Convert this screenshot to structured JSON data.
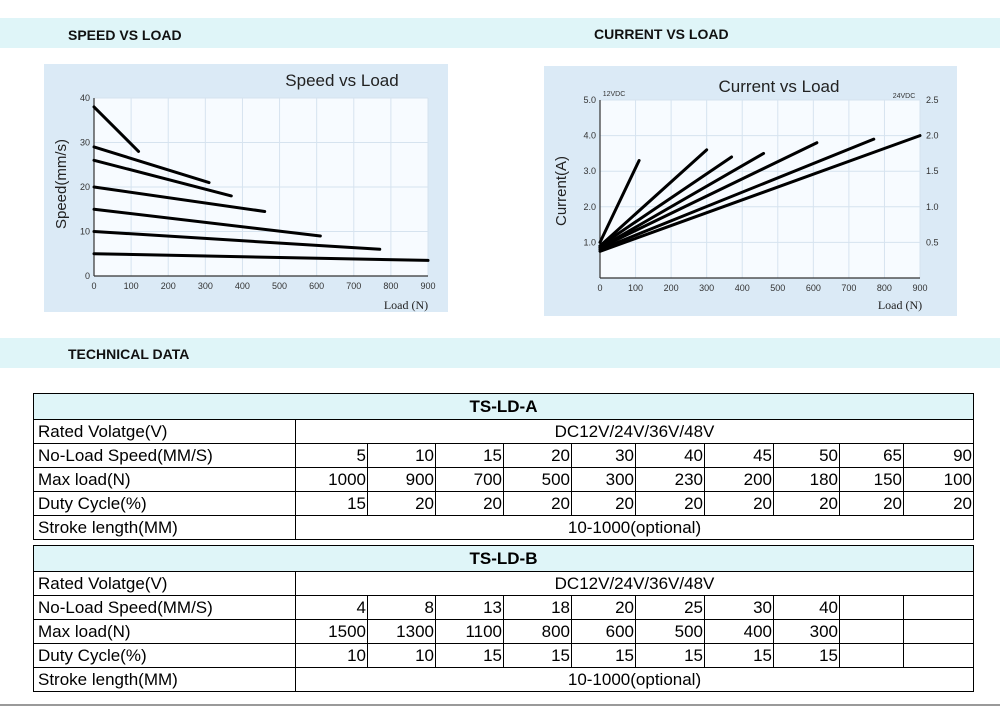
{
  "sections": {
    "speed_title": "SPEED VS LOAD",
    "current_title": "CURRENT VS LOAD",
    "tech_title": "TECHNICAL DATA"
  },
  "chart_data": [
    {
      "type": "line",
      "title": "Speed vs Load",
      "xlabel": "Load (N)",
      "ylabel": "Speed(mm/s)",
      "xlim": [
        0,
        900
      ],
      "ylim": [
        0,
        40
      ],
      "xticks": [
        "0",
        "100",
        "200",
        "300",
        "400",
        "500",
        "600",
        "700",
        "800",
        "900"
      ],
      "yticks": [
        "0",
        "10",
        "20",
        "30",
        "40"
      ],
      "grid": true,
      "series": [
        {
          "x": [
            0,
            120
          ],
          "y": [
            38,
            28
          ]
        },
        {
          "x": [
            0,
            310
          ],
          "y": [
            29,
            21
          ]
        },
        {
          "x": [
            0,
            370
          ],
          "y": [
            26,
            18
          ]
        },
        {
          "x": [
            0,
            460
          ],
          "y": [
            20,
            14.5
          ]
        },
        {
          "x": [
            0,
            610
          ],
          "y": [
            15,
            9
          ]
        },
        {
          "x": [
            0,
            770
          ],
          "y": [
            10,
            6
          ]
        },
        {
          "x": [
            0,
            900
          ],
          "y": [
            5,
            3.5
          ]
        }
      ]
    },
    {
      "type": "line",
      "title": "Current vs Load",
      "xlabel": "Load (N)",
      "ylabel": "Current(A)",
      "left_axis_label": "12VDC",
      "right_axis_label": "24VDC",
      "xlim": [
        0,
        900
      ],
      "ylim": [
        0,
        5
      ],
      "y2lim": [
        0,
        2.5
      ],
      "xticks": [
        "0",
        "100",
        "200",
        "300",
        "400",
        "500",
        "600",
        "700",
        "800",
        "900"
      ],
      "yticks": [
        "1.0",
        "2.0",
        "3.0",
        "4.0",
        "5.0"
      ],
      "y2ticks": [
        "0.5",
        "1.0",
        "1.5",
        "2.0",
        "2.5"
      ],
      "grid": true,
      "series": [
        {
          "x": [
            0,
            110
          ],
          "y": [
            1.0,
            3.3
          ]
        },
        {
          "x": [
            0,
            300
          ],
          "y": [
            0.9,
            3.6
          ]
        },
        {
          "x": [
            0,
            370
          ],
          "y": [
            0.9,
            3.4
          ]
        },
        {
          "x": [
            0,
            460
          ],
          "y": [
            0.85,
            3.5
          ]
        },
        {
          "x": [
            0,
            610
          ],
          "y": [
            0.85,
            3.8
          ]
        },
        {
          "x": [
            0,
            770
          ],
          "y": [
            0.8,
            3.9
          ]
        },
        {
          "x": [
            0,
            900
          ],
          "y": [
            0.75,
            4.0
          ]
        }
      ]
    }
  ],
  "tables": [
    {
      "title": "TS-LD-A",
      "voltage_label": "Rated Volatge(V)",
      "voltage_value": "DC12V/24V/36V/48V",
      "speed_label": "No-Load Speed(MM/S)",
      "speeds": [
        "5",
        "10",
        "15",
        "20",
        "30",
        "40",
        "45",
        "50",
        "65",
        "90"
      ],
      "load_label": "Max load(N)",
      "loads": [
        "1000",
        "900",
        "700",
        "500",
        "300",
        "230",
        "200",
        "180",
        "150",
        "100"
      ],
      "duty_label": "Duty Cycle(%)",
      "duties": [
        "15",
        "20",
        "20",
        "20",
        "20",
        "20",
        "20",
        "20",
        "20",
        "20"
      ],
      "stroke_label": "Stroke length(MM)",
      "stroke_value": "10-1000(optional)"
    },
    {
      "title": "TS-LD-B",
      "voltage_label": "Rated Volatge(V)",
      "voltage_value": "DC12V/24V/36V/48V",
      "speed_label": "No-Load Speed(MM/S)",
      "speeds": [
        "4",
        "8",
        "13",
        "18",
        "20",
        "25",
        "30",
        "40",
        "",
        ""
      ],
      "load_label": "Max load(N)",
      "loads": [
        "1500",
        "1300",
        "1100",
        "800",
        "600",
        "500",
        "400",
        "300",
        "",
        ""
      ],
      "duty_label": "Duty Cycle(%)",
      "duties": [
        "10",
        "10",
        "15",
        "15",
        "15",
        "15",
        "15",
        "15",
        "",
        ""
      ],
      "stroke_label": "Stroke length(MM)",
      "stroke_value": "10-1000(optional)"
    }
  ]
}
